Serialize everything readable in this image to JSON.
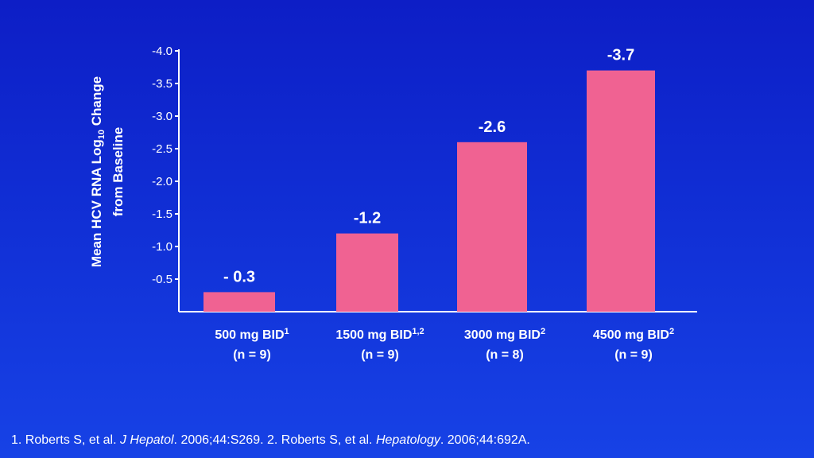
{
  "chart_data": {
    "type": "bar",
    "categories": [
      {
        "label": "500 mg BID",
        "sup": "1",
        "n": "(n = 9)"
      },
      {
        "label": "1500 mg BID",
        "sup": "1,2",
        "n": "(n = 9)"
      },
      {
        "label": "3000 mg BID",
        "sup": "2",
        "n": "(n = 8)"
      },
      {
        "label": "4500 mg BID",
        "sup": "2",
        "n": "(n = 9)"
      }
    ],
    "values": [
      -0.3,
      -1.2,
      -2.6,
      -3.7
    ],
    "value_labels": [
      "- 0.3",
      "-1.2",
      "-2.6",
      "-3.7"
    ],
    "ylabel_line1": "Mean HCV RNA Log",
    "ylabel_sub": "10",
    "ylabel_line1_end": " Change",
    "ylabel_line2": "from Baseline",
    "yticks": [
      "-0.5",
      "-1.0",
      "-1.5",
      "-2.0",
      "-2.5",
      "-3.0",
      "-3.5",
      "-4.0"
    ],
    "ytick_values": [
      -0.5,
      -1.0,
      -1.5,
      -2.0,
      -2.5,
      -3.0,
      -3.5,
      -4.0
    ],
    "ylim": [
      0,
      -4.0
    ],
    "bar_color": "#f06292",
    "axis_color": "#ffffff",
    "grid": false
  },
  "footnote": {
    "ref1_text": "1. Roberts S, et al. ",
    "ref1_journal": "J Hepatol",
    "ref1_rest": ". 2006;44:S269. 2. Roberts S, et al. ",
    "ref2_journal": "Hepatology",
    "ref2_rest": ". 2006;44:692A."
  }
}
